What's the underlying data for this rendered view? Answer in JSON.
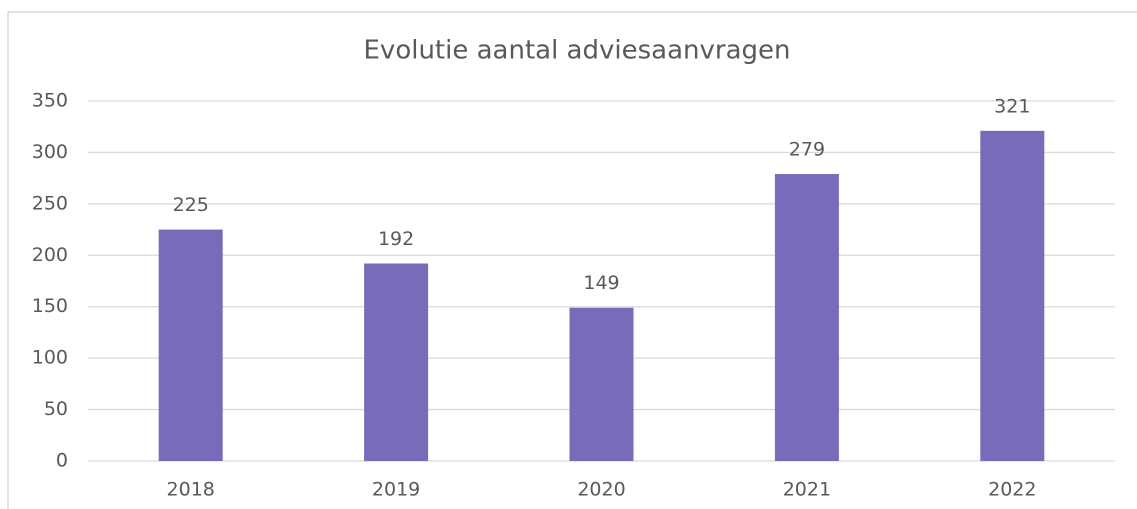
{
  "chart_data": {
    "type": "bar",
    "title": "Evolutie aantal adviesaanvragen",
    "categories": [
      "2018",
      "2019",
      "2020",
      "2021",
      "2022"
    ],
    "values": [
      225,
      192,
      149,
      279,
      321
    ],
    "color": "#786bba",
    "ylim": [
      0,
      350
    ],
    "yticks": [
      0,
      50,
      100,
      150,
      200,
      250,
      300,
      350
    ],
    "grid": true
  }
}
